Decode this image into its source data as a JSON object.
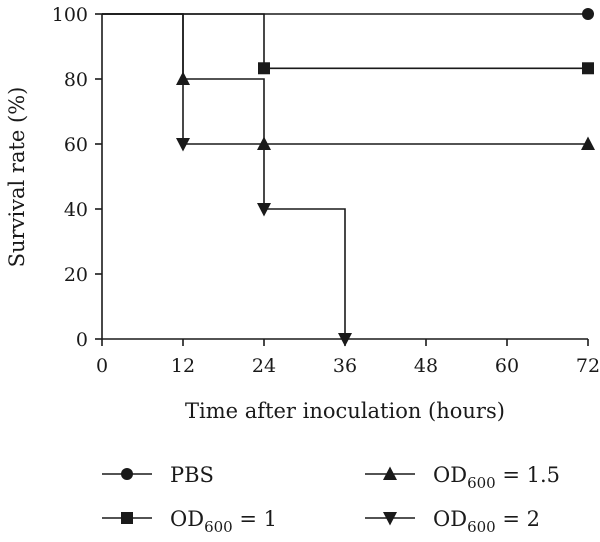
{
  "chart_data": {
    "type": "line",
    "step": true,
    "xlabel": "Time after inoculation (hours)",
    "ylabel": "Survival rate (%)",
    "xlim": [
      0,
      72
    ],
    "ylim": [
      0,
      100
    ],
    "xticks": [
      "0",
      "12",
      "24",
      "36",
      "48",
      "60",
      "72"
    ],
    "yticks": [
      "0",
      "20",
      "40",
      "60",
      "80",
      "100"
    ],
    "grid": false,
    "legend_position": "bottom",
    "series": [
      {
        "name": "PBS",
        "marker": "circle",
        "steps": [
          [
            0,
            100
          ],
          [
            72,
            100
          ]
        ],
        "markers": [
          [
            72,
            100
          ]
        ]
      },
      {
        "name": "OD600 = 1",
        "name_parts": {
          "base": "OD",
          "sub": "600",
          "rest": " = 1"
        },
        "marker": "square",
        "steps": [
          [
            0,
            100
          ],
          [
            24,
            100
          ],
          [
            24,
            83.3
          ],
          [
            72,
            83.3
          ]
        ],
        "markers": [
          [
            24,
            83.3
          ],
          [
            72,
            83.3
          ]
        ]
      },
      {
        "name": "OD600 = 1.5",
        "name_parts": {
          "base": "OD",
          "sub": "600",
          "rest": " = 1.5"
        },
        "marker": "triangle-up",
        "steps": [
          [
            0,
            100
          ],
          [
            12,
            100
          ],
          [
            12,
            80
          ],
          [
            24,
            80
          ],
          [
            24,
            60
          ],
          [
            72,
            60
          ]
        ],
        "markers": [
          [
            12,
            80
          ],
          [
            24,
            60
          ],
          [
            72,
            60
          ]
        ]
      },
      {
        "name": "OD600 = 2",
        "name_parts": {
          "base": "OD",
          "sub": "600",
          "rest": " = 2"
        },
        "marker": "triangle-down",
        "steps": [
          [
            0,
            100
          ],
          [
            12,
            100
          ],
          [
            12,
            60
          ],
          [
            24,
            60
          ],
          [
            24,
            40
          ],
          [
            36,
            40
          ],
          [
            36,
            0
          ]
        ],
        "markers": [
          [
            12,
            60
          ],
          [
            24,
            40
          ],
          [
            36,
            0
          ]
        ]
      }
    ]
  }
}
